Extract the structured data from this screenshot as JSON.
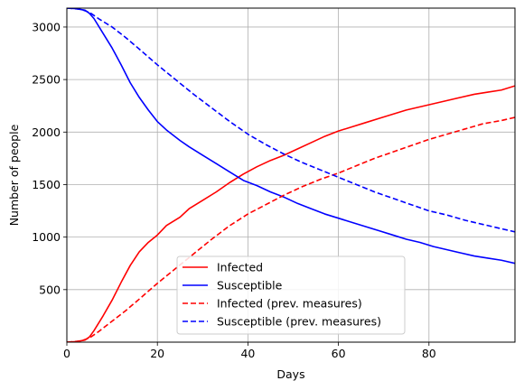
{
  "chart_data": {
    "type": "line",
    "title": "",
    "xlabel": "Days",
    "ylabel": "Number of people",
    "xlim": [
      0,
      99
    ],
    "ylim": [
      0,
      3180
    ],
    "xticks": [
      0,
      20,
      40,
      60,
      80
    ],
    "yticks": [
      500,
      1000,
      1500,
      2000,
      2500,
      3000
    ],
    "grid": true,
    "legend_position": "lower-center",
    "series": [
      {
        "name": "Infected",
        "color": "#ff0000",
        "dash": "solid",
        "x": [
          0,
          2,
          4,
          5,
          6,
          8,
          10,
          12,
          14,
          16,
          18,
          20,
          22,
          25,
          27,
          30,
          33,
          36,
          39,
          42,
          45,
          48,
          51,
          54,
          57,
          60,
          63,
          66,
          69,
          72,
          75,
          78,
          81,
          84,
          87,
          90,
          93,
          96,
          99
        ],
        "y": [
          0,
          5,
          20,
          50,
          110,
          250,
          400,
          570,
          730,
          860,
          950,
          1020,
          1110,
          1190,
          1270,
          1350,
          1430,
          1520,
          1600,
          1670,
          1730,
          1780,
          1840,
          1900,
          1960,
          2010,
          2050,
          2090,
          2130,
          2170,
          2210,
          2240,
          2270,
          2300,
          2330,
          2360,
          2380,
          2400,
          2440
        ]
      },
      {
        "name": "Susceptible",
        "color": "#0000ff",
        "dash": "solid",
        "x": [
          0,
          2,
          4,
          5,
          6,
          8,
          10,
          12,
          14,
          16,
          18,
          20,
          22,
          25,
          27,
          30,
          33,
          36,
          39,
          42,
          45,
          48,
          51,
          54,
          57,
          60,
          63,
          66,
          69,
          72,
          75,
          78,
          81,
          84,
          87,
          90,
          93,
          96,
          99
        ],
        "y": [
          3180,
          3175,
          3160,
          3130,
          3080,
          2940,
          2800,
          2640,
          2470,
          2330,
          2210,
          2100,
          2020,
          1920,
          1860,
          1780,
          1700,
          1620,
          1540,
          1490,
          1430,
          1380,
          1320,
          1270,
          1220,
          1180,
          1140,
          1100,
          1060,
          1020,
          980,
          950,
          910,
          880,
          850,
          820,
          800,
          780,
          750
        ]
      },
      {
        "name": "Infected (prev. measures)",
        "color": "#ff0000",
        "dash": "dashed",
        "x": [
          0,
          3,
          5,
          7,
          10,
          13,
          16,
          20,
          24,
          28,
          32,
          36,
          40,
          44,
          48,
          52,
          56,
          60,
          64,
          68,
          72,
          76,
          80,
          84,
          88,
          92,
          96,
          99
        ],
        "y": [
          0,
          10,
          40,
          100,
          200,
          300,
          410,
          560,
          700,
          840,
          980,
          1110,
          1220,
          1310,
          1400,
          1480,
          1550,
          1610,
          1680,
          1750,
          1810,
          1870,
          1930,
          1980,
          2030,
          2080,
          2110,
          2140
        ]
      },
      {
        "name": "Susceptible (prev. measures)",
        "color": "#0000ff",
        "dash": "dashed",
        "x": [
          0,
          3,
          5,
          7,
          10,
          13,
          16,
          20,
          24,
          28,
          32,
          36,
          40,
          44,
          48,
          52,
          56,
          60,
          64,
          68,
          72,
          76,
          80,
          84,
          88,
          92,
          96,
          99
        ],
        "y": [
          3180,
          3170,
          3140,
          3080,
          3000,
          2900,
          2790,
          2640,
          2500,
          2360,
          2230,
          2100,
          1980,
          1880,
          1790,
          1710,
          1640,
          1570,
          1500,
          1430,
          1370,
          1310,
          1250,
          1210,
          1160,
          1120,
          1080,
          1050
        ]
      }
    ]
  }
}
